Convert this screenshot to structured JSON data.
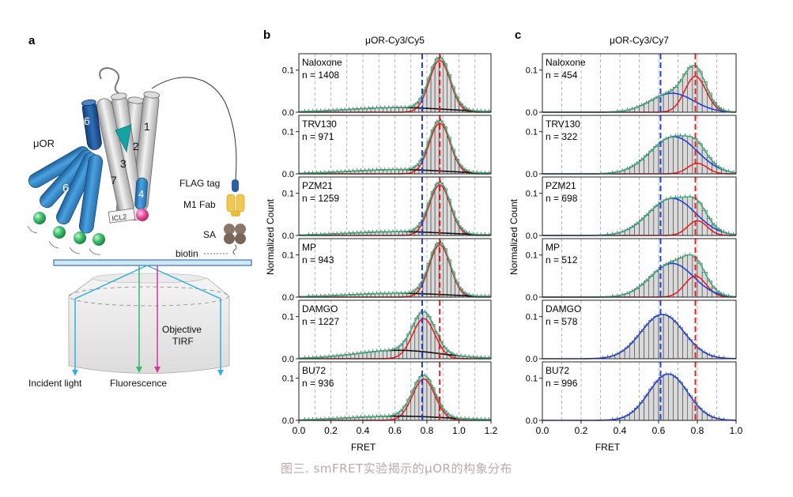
{
  "caption": "图三. smFRET实验揭示的μOR的构象分布",
  "panel_a": {
    "letter": "a",
    "labels": {
      "receptor": "μOR",
      "flag_tag": "FLAG tag",
      "fab": "M1 Fab",
      "sa": "SA",
      "biotin": "biotin",
      "objective": "Objective",
      "tirf": "TIRF",
      "incident": "Incident light",
      "fluorescence": "Fluorescence",
      "icl2": "ICL2",
      "helix_1": "1",
      "helix_2": "2",
      "helix_3": "3",
      "helix_4": "4",
      "helix_6a": "6",
      "helix_6b": "6",
      "helix_7": "7"
    }
  },
  "chart_data": [
    {
      "type": "bar",
      "panel": "b",
      "title": "μOR-Cy3/Cy5",
      "xlabel": "FRET",
      "ylabel": "Normalized Count",
      "xlim": [
        0.0,
        1.2
      ],
      "xticks": [
        "0.0",
        "0.2",
        "0.4",
        "0.6",
        "0.8",
        "1.0",
        "1.2"
      ],
      "ylim": [
        0.0,
        0.135
      ],
      "yticks": [
        "0.0",
        "0.1"
      ],
      "bin_width": 0.025,
      "reference_lines": [
        0.77,
        0.88
      ],
      "fit_colors": [
        "#e32222",
        "#111111"
      ],
      "histograms": [
        {
          "label": "Naloxone",
          "n": "n = 1408",
          "components": [
            {
              "amp": 0.123,
              "mu": 0.88,
              "sigma": 0.065
            },
            {
              "amp": 0.011,
              "mu": 0.62,
              "sigma": 0.3
            }
          ]
        },
        {
          "label": "TRV130",
          "n": "n = 971",
          "components": [
            {
              "amp": 0.12,
              "mu": 0.88,
              "sigma": 0.065
            },
            {
              "amp": 0.01,
              "mu": 0.62,
              "sigma": 0.3
            }
          ]
        },
        {
          "label": "PZM21",
          "n": "n = 1259",
          "components": [
            {
              "amp": 0.12,
              "mu": 0.88,
              "sigma": 0.065
            },
            {
              "amp": 0.009,
              "mu": 0.62,
              "sigma": 0.3
            }
          ]
        },
        {
          "label": "MP",
          "n": "n = 943",
          "components": [
            {
              "amp": 0.124,
              "mu": 0.88,
              "sigma": 0.065
            },
            {
              "amp": 0.009,
              "mu": 0.62,
              "sigma": 0.3
            }
          ]
        },
        {
          "label": "DAMGO",
          "n": "n = 1227",
          "components": [
            {
              "amp": 0.095,
              "mu": 0.78,
              "sigma": 0.07
            },
            {
              "amp": 0.02,
              "mu": 0.62,
              "sigma": 0.26
            }
          ]
        },
        {
          "label": "BU72",
          "n": "n = 936",
          "components": [
            {
              "amp": 0.098,
              "mu": 0.78,
              "sigma": 0.07
            },
            {
              "amp": 0.01,
              "mu": 0.62,
              "sigma": 0.3
            }
          ]
        }
      ]
    },
    {
      "type": "bar",
      "panel": "c",
      "title": "μOR-Cy3/Cy7",
      "xlabel": "FRET",
      "ylabel": "Normalized Count",
      "xlim": [
        0.0,
        1.0
      ],
      "xticks": [
        "0.0",
        "0.2",
        "0.4",
        "0.6",
        "0.8",
        "1.0"
      ],
      "ylim": [
        0.0,
        0.135
      ],
      "yticks": [
        "0.0",
        "0.1"
      ],
      "bin_width": 0.025,
      "reference_lines": [
        0.61,
        0.79
      ],
      "fit_colors": [
        "#e32222",
        "#1f3fd6"
      ],
      "histograms": [
        {
          "label": "Naloxone",
          "n": "n = 454",
          "components": [
            {
              "amp": 0.085,
              "mu": 0.79,
              "sigma": 0.055
            },
            {
              "amp": 0.045,
              "mu": 0.67,
              "sigma": 0.11
            }
          ]
        },
        {
          "label": "TRV130",
          "n": "n = 322",
          "components": [
            {
              "amp": 0.025,
              "mu": 0.8,
              "sigma": 0.05
            },
            {
              "amp": 0.088,
              "mu": 0.68,
              "sigma": 0.12
            }
          ]
        },
        {
          "label": "PZM21",
          "n": "n = 698",
          "components": [
            {
              "amp": 0.035,
              "mu": 0.8,
              "sigma": 0.05
            },
            {
              "amp": 0.088,
              "mu": 0.67,
              "sigma": 0.12
            }
          ]
        },
        {
          "label": "MP",
          "n": "n = 512",
          "components": [
            {
              "amp": 0.05,
              "mu": 0.79,
              "sigma": 0.055
            },
            {
              "amp": 0.08,
              "mu": 0.67,
              "sigma": 0.11
            }
          ]
        },
        {
          "label": "DAMGO",
          "n": "n = 578",
          "components": [
            {
              "amp": 0.105,
              "mu": 0.62,
              "sigma": 0.11
            }
          ]
        },
        {
          "label": "BU72",
          "n": "n = 996",
          "components": [
            {
              "amp": 0.11,
              "mu": 0.65,
              "sigma": 0.1
            }
          ]
        }
      ]
    }
  ]
}
